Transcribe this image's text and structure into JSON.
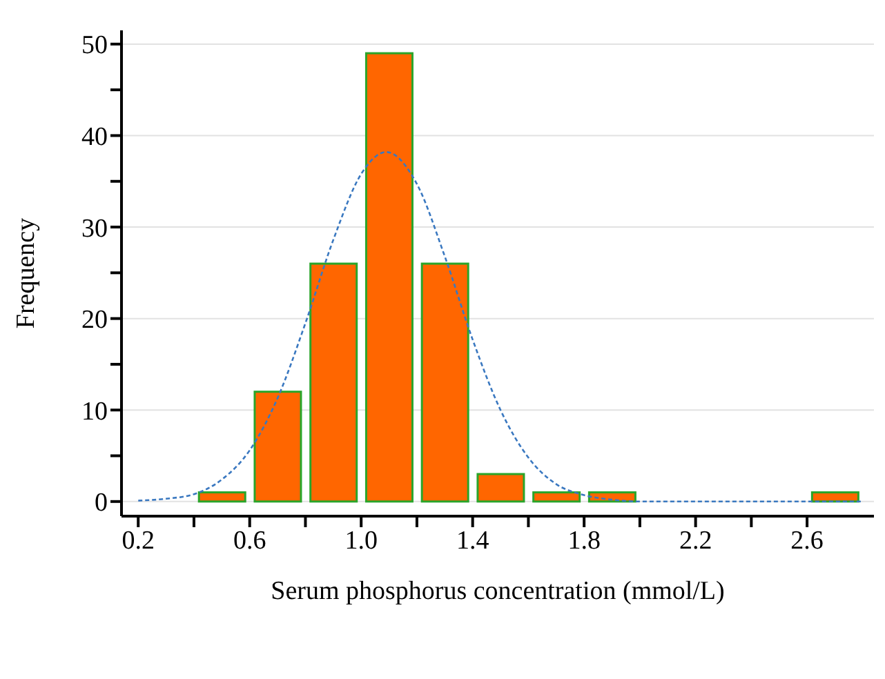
{
  "chart_data": {
    "type": "histogram",
    "xlabel": "Serum phosphorus concentration (mmol/L)",
    "ylabel": "Frequency",
    "series": [
      {
        "bins": [
          0.4,
          0.6,
          0.8,
          1.0,
          1.2,
          1.4,
          1.6,
          1.8,
          2.0,
          2.2,
          2.4,
          2.6,
          2.8
        ],
        "values": [
          1,
          12,
          26,
          49,
          26,
          3,
          1,
          1,
          0,
          0,
          0,
          1
        ],
        "color": "#ff6600"
      },
      {
        "type": "line",
        "color": "#3a78c0",
        "line_style": "dashed",
        "marker": "none",
        "x": [
          0.2,
          0.3,
          0.4,
          0.5,
          0.6,
          0.7,
          0.8,
          0.9,
          1.0,
          1.09,
          1.2,
          1.3,
          1.4,
          1.5,
          1.6,
          1.7,
          1.8,
          1.9,
          2.0,
          2.2,
          2.4,
          2.6,
          2.8
        ],
        "values": [
          0.1,
          0.3,
          0.8,
          2.4,
          5.6,
          11.3,
          19.5,
          28.6,
          35.8,
          38.2,
          34.7,
          26.8,
          17.7,
          10.0,
          4.8,
          1.9,
          0.7,
          0.2,
          0,
          0,
          0,
          0,
          0
        ]
      }
    ],
    "xlim": [
      0.14,
      2.84
    ],
    "xticks": [
      0.2,
      {
        "value": 0.4,
        "label": null
      },
      0.6,
      {
        "value": 0.8,
        "label": null
      },
      {
        "value": 1.0,
        "label": "1.0"
      },
      {
        "value": 1.2,
        "label": null
      },
      1.4,
      {
        "value": 1.6,
        "label": null
      },
      1.8,
      {
        "value": 2.0,
        "label": null
      },
      2.2,
      {
        "value": 2.4,
        "label": null
      },
      2.6
    ],
    "ylim": [
      -1.6,
      51.5
    ],
    "yticks": [
      0,
      {
        "value": 5,
        "label": null
      },
      10,
      {
        "value": 15,
        "label": null
      },
      20,
      {
        "value": 25,
        "label": null
      },
      30,
      {
        "value": 35,
        "label": null
      },
      40,
      {
        "value": 45,
        "label": null
      },
      50
    ],
    "grid": "y"
  }
}
